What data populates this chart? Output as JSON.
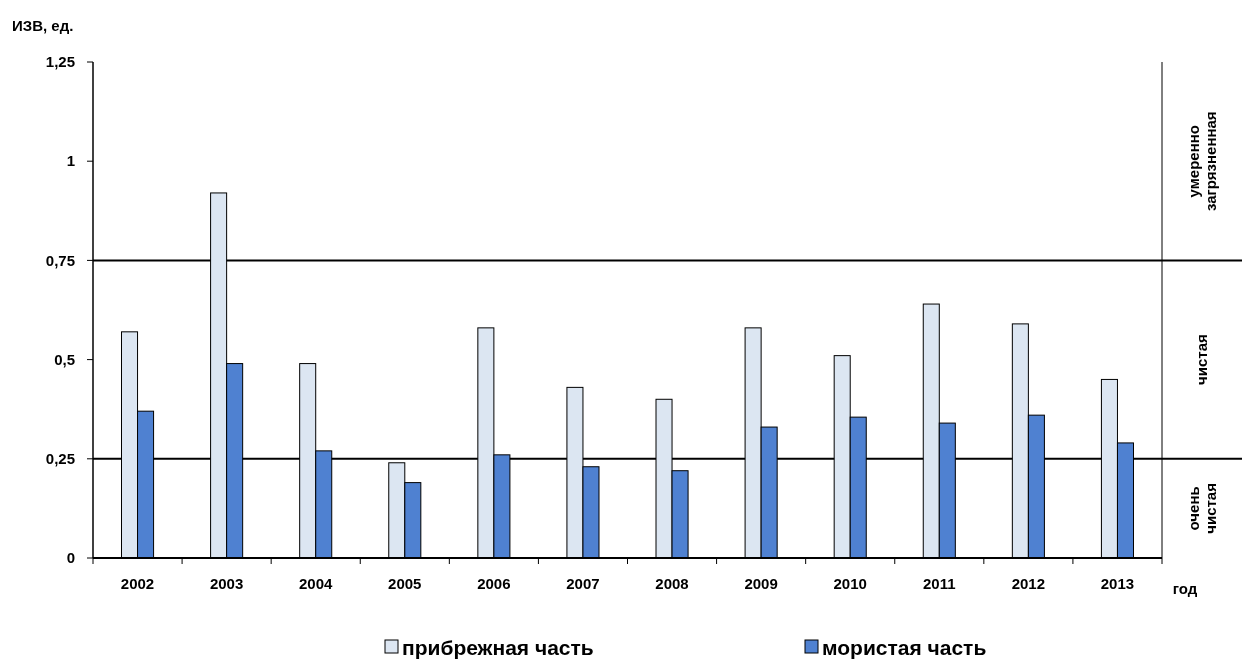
{
  "chart_data": {
    "type": "bar",
    "ylabel": "ИЗВ, ед.",
    "xlabel": "год",
    "categories": [
      "2002",
      "2003",
      "2004",
      "2005",
      "2006",
      "2007",
      "2008",
      "2009",
      "2010",
      "2011",
      "2012",
      "2013"
    ],
    "series": [
      {
        "name": "прибрежная часть",
        "color": "#dce6f2",
        "values": [
          0.57,
          0.92,
          0.49,
          0.24,
          0.58,
          0.43,
          0.4,
          0.58,
          0.51,
          0.64,
          0.59,
          0.45
        ]
      },
      {
        "name": "мористая часть",
        "color": "#4f81d1",
        "values": [
          0.37,
          0.49,
          0.27,
          0.19,
          0.26,
          0.23,
          0.22,
          0.33,
          0.355,
          0.34,
          0.36,
          0.29
        ]
      }
    ],
    "ylim": [
      0,
      1.25
    ],
    "yticks": [
      {
        "value": 0,
        "label": "0"
      },
      {
        "value": 0.25,
        "label": "0,25"
      },
      {
        "value": 0.5,
        "label": "0,5"
      },
      {
        "value": 0.75,
        "label": "0,75"
      },
      {
        "value": 1,
        "label": "1"
      },
      {
        "value": 1.25,
        "label": "1,25"
      }
    ],
    "ref_lines": [
      {
        "axis": "y",
        "value": 0.25,
        "color": "#000000"
      },
      {
        "axis": "y",
        "value": 0.75,
        "color": "#000000"
      }
    ],
    "annotations": [
      "очень чистая",
      "чистая",
      "умеренно загрязненная"
    ],
    "legend": "bottom"
  }
}
